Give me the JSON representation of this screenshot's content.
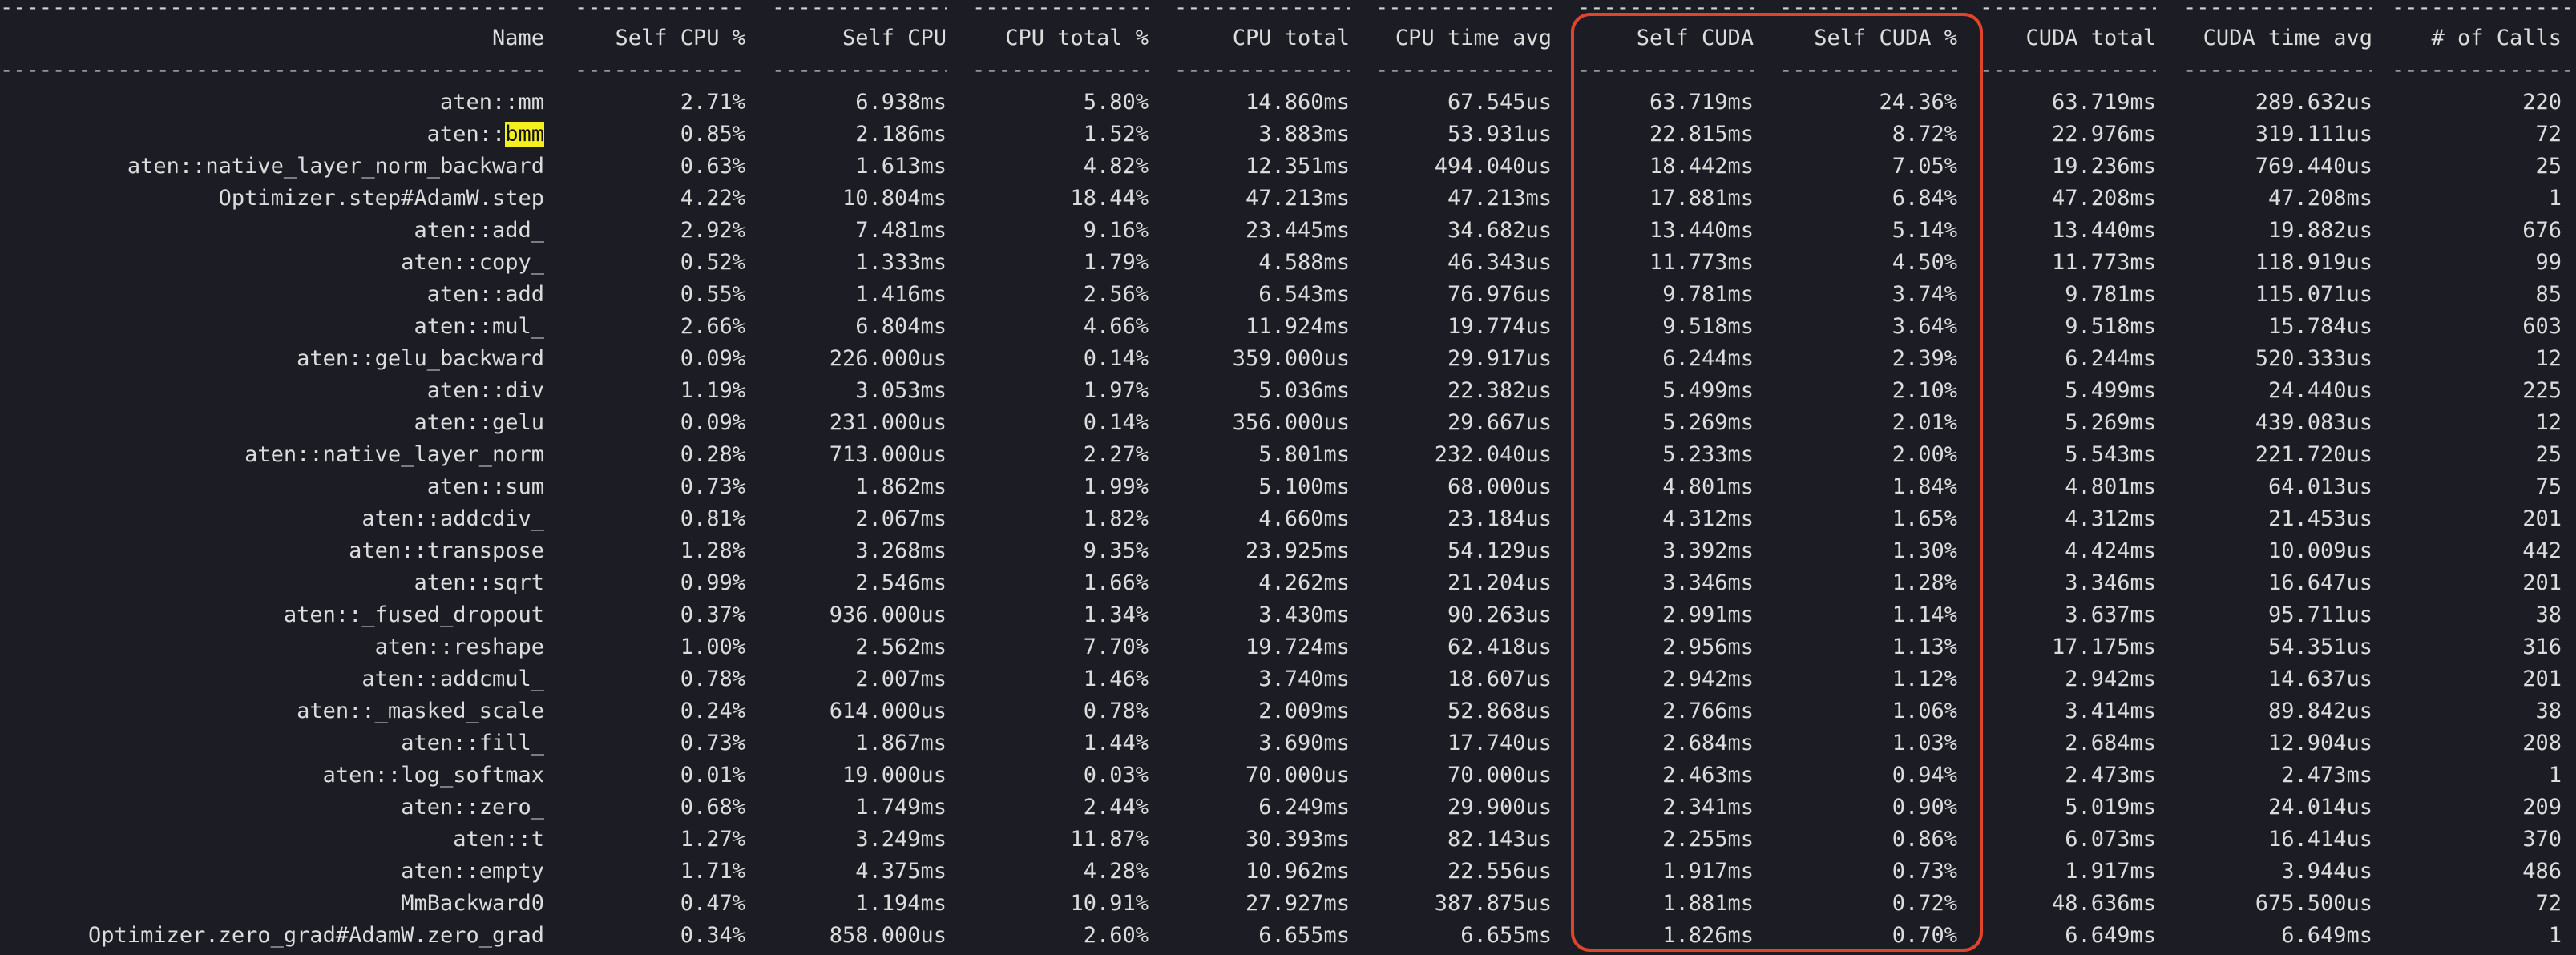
{
  "colors": {
    "background": "#1c1d24",
    "text": "#dcdcdc",
    "highlight": "#f4ef1f",
    "annotation_box": "#e0452b"
  },
  "headers": [
    "Name",
    "Self CPU %",
    "Self CPU",
    "CPU total %",
    "CPU total",
    "CPU time avg",
    "Self CUDA",
    "Self CUDA %",
    "CUDA total",
    "CUDA time avg",
    "# of Calls"
  ],
  "rows": [
    [
      "aten::mm",
      "2.71%",
      "6.938ms",
      "5.80%",
      "14.860ms",
      "67.545us",
      "63.719ms",
      "24.36%",
      "63.719ms",
      "289.632us",
      "220"
    ],
    [
      "aten::bmm",
      "0.85%",
      "2.186ms",
      "1.52%",
      "3.883ms",
      "53.931us",
      "22.815ms",
      "8.72%",
      "22.976ms",
      "319.111us",
      "72"
    ],
    [
      "aten::native_layer_norm_backward",
      "0.63%",
      "1.613ms",
      "4.82%",
      "12.351ms",
      "494.040us",
      "18.442ms",
      "7.05%",
      "19.236ms",
      "769.440us",
      "25"
    ],
    [
      "Optimizer.step#AdamW.step",
      "4.22%",
      "10.804ms",
      "18.44%",
      "47.213ms",
      "47.213ms",
      "17.881ms",
      "6.84%",
      "47.208ms",
      "47.208ms",
      "1"
    ],
    [
      "aten::add_",
      "2.92%",
      "7.481ms",
      "9.16%",
      "23.445ms",
      "34.682us",
      "13.440ms",
      "5.14%",
      "13.440ms",
      "19.882us",
      "676"
    ],
    [
      "aten::copy_",
      "0.52%",
      "1.333ms",
      "1.79%",
      "4.588ms",
      "46.343us",
      "11.773ms",
      "4.50%",
      "11.773ms",
      "118.919us",
      "99"
    ],
    [
      "aten::add",
      "0.55%",
      "1.416ms",
      "2.56%",
      "6.543ms",
      "76.976us",
      "9.781ms",
      "3.74%",
      "9.781ms",
      "115.071us",
      "85"
    ],
    [
      "aten::mul_",
      "2.66%",
      "6.804ms",
      "4.66%",
      "11.924ms",
      "19.774us",
      "9.518ms",
      "3.64%",
      "9.518ms",
      "15.784us",
      "603"
    ],
    [
      "aten::gelu_backward",
      "0.09%",
      "226.000us",
      "0.14%",
      "359.000us",
      "29.917us",
      "6.244ms",
      "2.39%",
      "6.244ms",
      "520.333us",
      "12"
    ],
    [
      "aten::div",
      "1.19%",
      "3.053ms",
      "1.97%",
      "5.036ms",
      "22.382us",
      "5.499ms",
      "2.10%",
      "5.499ms",
      "24.440us",
      "225"
    ],
    [
      "aten::gelu",
      "0.09%",
      "231.000us",
      "0.14%",
      "356.000us",
      "29.667us",
      "5.269ms",
      "2.01%",
      "5.269ms",
      "439.083us",
      "12"
    ],
    [
      "aten::native_layer_norm",
      "0.28%",
      "713.000us",
      "2.27%",
      "5.801ms",
      "232.040us",
      "5.233ms",
      "2.00%",
      "5.543ms",
      "221.720us",
      "25"
    ],
    [
      "aten::sum",
      "0.73%",
      "1.862ms",
      "1.99%",
      "5.100ms",
      "68.000us",
      "4.801ms",
      "1.84%",
      "4.801ms",
      "64.013us",
      "75"
    ],
    [
      "aten::addcdiv_",
      "0.81%",
      "2.067ms",
      "1.82%",
      "4.660ms",
      "23.184us",
      "4.312ms",
      "1.65%",
      "4.312ms",
      "21.453us",
      "201"
    ],
    [
      "aten::transpose",
      "1.28%",
      "3.268ms",
      "9.35%",
      "23.925ms",
      "54.129us",
      "3.392ms",
      "1.30%",
      "4.424ms",
      "10.009us",
      "442"
    ],
    [
      "aten::sqrt",
      "0.99%",
      "2.546ms",
      "1.66%",
      "4.262ms",
      "21.204us",
      "3.346ms",
      "1.28%",
      "3.346ms",
      "16.647us",
      "201"
    ],
    [
      "aten::_fused_dropout",
      "0.37%",
      "936.000us",
      "1.34%",
      "3.430ms",
      "90.263us",
      "2.991ms",
      "1.14%",
      "3.637ms",
      "95.711us",
      "38"
    ],
    [
      "aten::reshape",
      "1.00%",
      "2.562ms",
      "7.70%",
      "19.724ms",
      "62.418us",
      "2.956ms",
      "1.13%",
      "17.175ms",
      "54.351us",
      "316"
    ],
    [
      "aten::addcmul_",
      "0.78%",
      "2.007ms",
      "1.46%",
      "3.740ms",
      "18.607us",
      "2.942ms",
      "1.12%",
      "2.942ms",
      "14.637us",
      "201"
    ],
    [
      "aten::_masked_scale",
      "0.24%",
      "614.000us",
      "0.78%",
      "2.009ms",
      "52.868us",
      "2.766ms",
      "1.06%",
      "3.414ms",
      "89.842us",
      "38"
    ],
    [
      "aten::fill_",
      "0.73%",
      "1.867ms",
      "1.44%",
      "3.690ms",
      "17.740us",
      "2.684ms",
      "1.03%",
      "2.684ms",
      "12.904us",
      "208"
    ],
    [
      "aten::log_softmax",
      "0.01%",
      "19.000us",
      "0.03%",
      "70.000us",
      "70.000us",
      "2.463ms",
      "0.94%",
      "2.473ms",
      "2.473ms",
      "1"
    ],
    [
      "aten::zero_",
      "0.68%",
      "1.749ms",
      "2.44%",
      "6.249ms",
      "29.900us",
      "2.341ms",
      "0.90%",
      "5.019ms",
      "24.014us",
      "209"
    ],
    [
      "aten::t",
      "1.27%",
      "3.249ms",
      "11.87%",
      "30.393ms",
      "82.143us",
      "2.255ms",
      "0.86%",
      "6.073ms",
      "16.414us",
      "370"
    ],
    [
      "aten::empty",
      "1.71%",
      "4.375ms",
      "4.28%",
      "10.962ms",
      "22.556us",
      "1.917ms",
      "0.73%",
      "1.917ms",
      "3.944us",
      "486"
    ],
    [
      "MmBackward0",
      "0.47%",
      "1.194ms",
      "10.91%",
      "27.927ms",
      "387.875us",
      "1.881ms",
      "0.72%",
      "48.636ms",
      "675.500us",
      "72"
    ],
    [
      "Optimizer.zero_grad#AdamW.zero_grad",
      "0.34%",
      "858.000us",
      "2.60%",
      "6.655ms",
      "6.655ms",
      "1.826ms",
      "0.70%",
      "6.649ms",
      "6.649ms",
      "1"
    ]
  ],
  "highlighted_text": "bmm"
}
